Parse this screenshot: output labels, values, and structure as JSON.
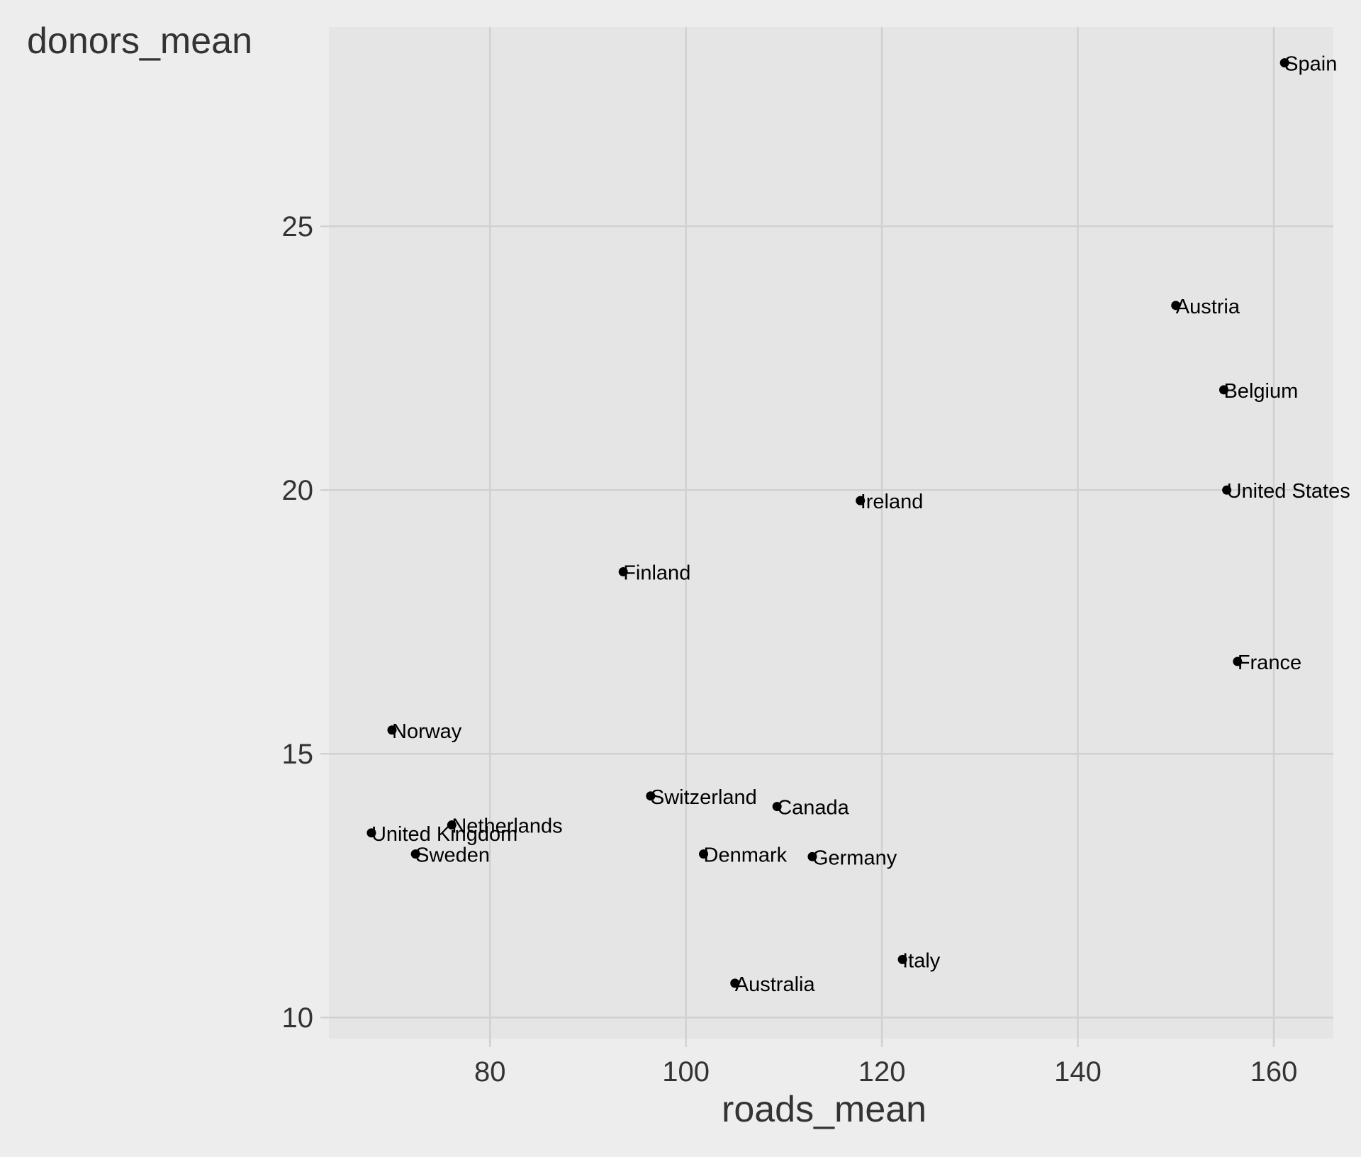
{
  "chart_data": {
    "type": "scatter",
    "xlabel": "roads_mean",
    "ylabel": "donors_mean",
    "xlim": [
      63.56,
      166.08
    ],
    "ylim": [
      9.6,
      28.78
    ],
    "x_ticks": [
      80,
      100,
      120,
      140,
      160
    ],
    "y_ticks": [
      10,
      15,
      20,
      25
    ],
    "grid": true,
    "colors": {
      "panel": "#e5e5e5",
      "background": "#ededed",
      "grid": "#d0d0d0",
      "point": "#000000",
      "axis_text": "#333333"
    },
    "points": [
      {
        "label": "Spain",
        "x": 161.1,
        "y": 28.1
      },
      {
        "label": "Austria",
        "x": 150.0,
        "y": 23.5
      },
      {
        "label": "Belgium",
        "x": 154.9,
        "y": 21.9
      },
      {
        "label": "United States",
        "x": 155.2,
        "y": 20.0
      },
      {
        "label": "Ireland",
        "x": 117.8,
        "y": 19.8
      },
      {
        "label": "Finland",
        "x": 93.6,
        "y": 18.45
      },
      {
        "label": "France",
        "x": 156.3,
        "y": 16.75
      },
      {
        "label": "Norway",
        "x": 70.0,
        "y": 15.45
      },
      {
        "label": "Switzerland",
        "x": 96.4,
        "y": 14.2
      },
      {
        "label": "Canada",
        "x": 109.3,
        "y": 14.0
      },
      {
        "label": "Netherlands",
        "x": 76.1,
        "y": 13.65
      },
      {
        "label": "United Kingdom",
        "x": 67.9,
        "y": 13.5
      },
      {
        "label": "Sweden",
        "x": 72.4,
        "y": 13.1
      },
      {
        "label": "Denmark",
        "x": 101.8,
        "y": 13.1
      },
      {
        "label": "Germany",
        "x": 112.9,
        "y": 13.05
      },
      {
        "label": "Italy",
        "x": 122.1,
        "y": 11.1
      },
      {
        "label": "Australia",
        "x": 105.0,
        "y": 10.65
      }
    ]
  }
}
